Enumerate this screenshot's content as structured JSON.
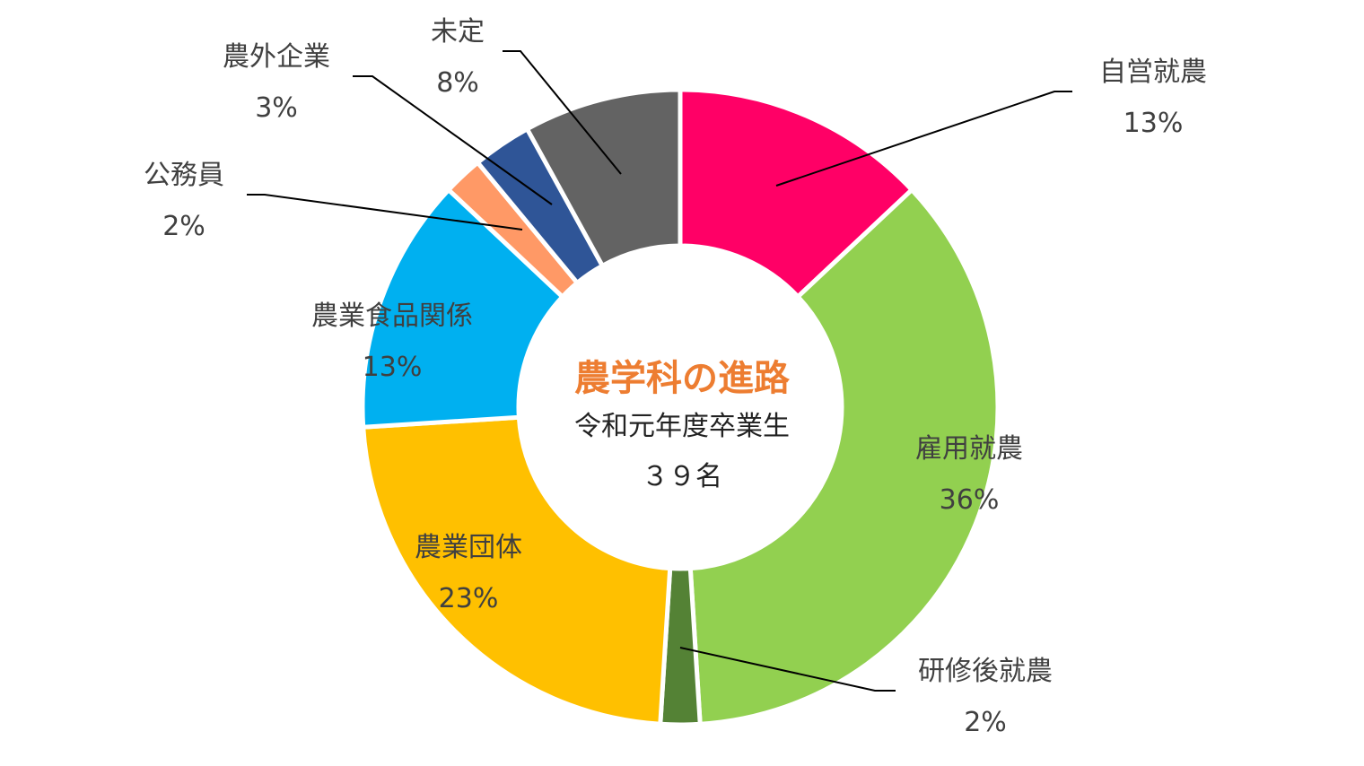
{
  "chart_data": {
    "type": "pie",
    "variant": "donut",
    "center_title": "農学科の進路",
    "center_subtitle": "令和元年度卒業生",
    "center_count": "３９名",
    "slices": [
      {
        "label": "自営就農",
        "value": 13,
        "display": "13%",
        "color": "#FF0066"
      },
      {
        "label": "雇用就農",
        "value": 36,
        "display": "36%",
        "color": "#92D050"
      },
      {
        "label": "研修後就農",
        "value": 2,
        "display": "2%",
        "color": "#548235"
      },
      {
        "label": "農業団体",
        "value": 23,
        "display": "23%",
        "color": "#FFC000"
      },
      {
        "label": "農業食品関係",
        "value": 13,
        "display": "13%",
        "color": "#00B0F0"
      },
      {
        "label": "公務員",
        "value": 2,
        "display": "2%",
        "color": "#FF9966"
      },
      {
        "label": "農外企業",
        "value": 3,
        "display": "3%",
        "color": "#2F5597"
      },
      {
        "label": "未定",
        "value": 8,
        "display": "8%",
        "color": "#636363"
      }
    ],
    "legend": "none"
  }
}
